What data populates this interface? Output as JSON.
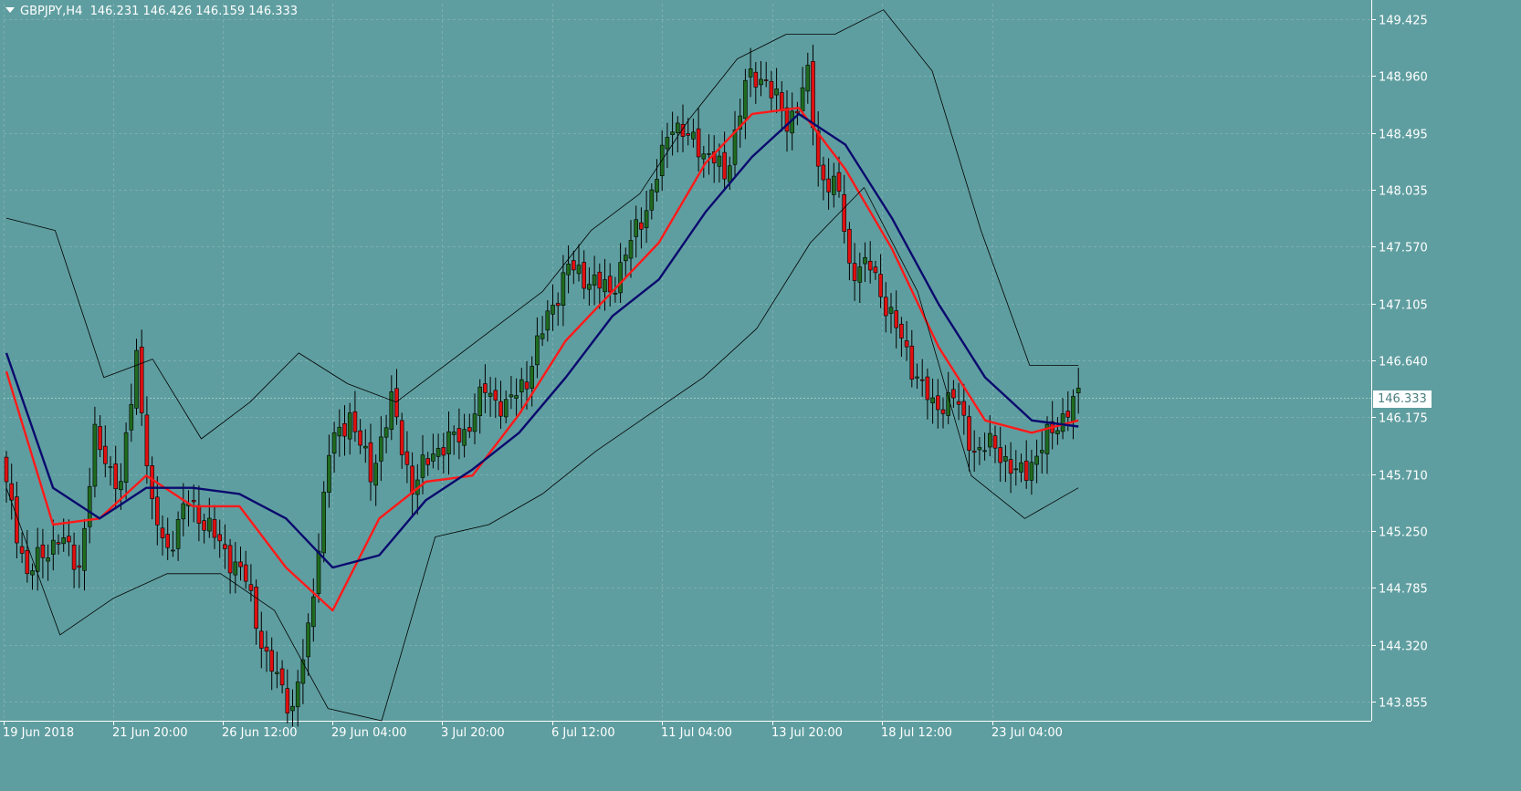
{
  "header": {
    "symbol": "GBPJPY,H4",
    "ohlc": "146.231 146.426 146.159 146.333"
  },
  "current_price_label": "146.333",
  "colors": {
    "background": "#5f9ea0",
    "bull_candle": "#1f6b1f",
    "bear_candle": "#e01010",
    "wick": "#000000",
    "fast_ma": "#ff1a1a",
    "slow_ma": "#0a0a6e",
    "bands": "#000000",
    "grid": "#7aaeb0",
    "axis_text": "#ffffff"
  },
  "chart_data": {
    "type": "candlestick",
    "title": "GBPJPY,H4",
    "ylim": [
      143.7,
      149.55
    ],
    "yticks": [
      "149.425",
      "148.960",
      "148.495",
      "148.035",
      "147.570",
      "147.105",
      "146.640",
      "146.175",
      "145.710",
      "145.250",
      "144.785",
      "144.320",
      "143.855"
    ],
    "xticks": [
      "19 Jun 2018",
      "21 Jun 20:00",
      "26 Jun 12:00",
      "29 Jun 04:00",
      "3 Jul 20:00",
      "6 Jul 12:00",
      "11 Jul 04:00",
      "13 Jul 20:00",
      "18 Jul 12:00",
      "23 Jul 04:00"
    ],
    "grid": true,
    "close_anchors": [
      [
        0,
        145.6
      ],
      [
        4,
        144.9
      ],
      [
        10,
        145.2
      ],
      [
        14,
        144.95
      ],
      [
        17,
        146.0
      ],
      [
        22,
        145.6
      ],
      [
        25,
        146.7
      ],
      [
        28,
        145.4
      ],
      [
        31,
        145.1
      ],
      [
        35,
        145.5
      ],
      [
        40,
        145.2
      ],
      [
        46,
        144.85
      ],
      [
        50,
        144.2
      ],
      [
        55,
        143.8
      ],
      [
        58,
        144.4
      ],
      [
        62,
        145.9
      ],
      [
        66,
        146.2
      ],
      [
        70,
        145.7
      ],
      [
        74,
        146.3
      ],
      [
        78,
        145.6
      ],
      [
        82,
        145.9
      ],
      [
        88,
        146.05
      ],
      [
        92,
        146.4
      ],
      [
        96,
        146.25
      ],
      [
        100,
        146.5
      ],
      [
        104,
        147.0
      ],
      [
        108,
        147.4
      ],
      [
        112,
        147.3
      ],
      [
        116,
        147.2
      ],
      [
        120,
        147.6
      ],
      [
        124,
        148.0
      ],
      [
        128,
        148.6
      ],
      [
        132,
        148.4
      ],
      [
        136,
        148.3
      ],
      [
        138,
        148.1
      ],
      [
        142,
        148.9
      ],
      [
        146,
        148.95
      ],
      [
        150,
        148.55
      ],
      [
        154,
        148.95
      ],
      [
        156,
        148.2
      ],
      [
        160,
        148.0
      ],
      [
        162,
        147.4
      ],
      [
        166,
        147.4
      ],
      [
        170,
        147.0
      ],
      [
        174,
        146.6
      ],
      [
        178,
        146.25
      ],
      [
        182,
        146.35
      ],
      [
        186,
        145.9
      ],
      [
        190,
        145.95
      ],
      [
        194,
        145.7
      ],
      [
        196,
        145.75
      ],
      [
        200,
        146.0
      ],
      [
        204,
        146.25
      ],
      [
        206,
        146.33
      ]
    ],
    "series": [
      {
        "name": "",
        "style": "red moving average",
        "values": [
          146.55,
          145.3,
          145.35,
          145.7,
          145.45,
          145.45,
          144.95,
          144.6,
          145.35,
          145.65,
          145.7,
          146.2,
          146.8,
          147.2,
          147.6,
          148.25,
          148.65,
          148.7,
          148.2,
          147.55,
          146.75,
          146.15,
          146.05,
          146.15
        ]
      },
      {
        "name": "",
        "style": "navy moving average",
        "values": [
          146.7,
          145.6,
          145.35,
          145.6,
          145.6,
          145.55,
          145.35,
          144.95,
          145.05,
          145.5,
          145.75,
          146.05,
          146.5,
          147.0,
          147.3,
          147.85,
          148.3,
          148.65,
          148.4,
          147.8,
          147.1,
          146.5,
          146.15,
          146.1
        ]
      },
      {
        "name": "",
        "style": "upper Bollinger band",
        "values": [
          147.8,
          147.7,
          146.5,
          146.65,
          146.0,
          146.3,
          146.7,
          146.45,
          146.3,
          146.6,
          146.9,
          147.2,
          147.7,
          148.0,
          148.6,
          149.1,
          149.3,
          149.3,
          149.5,
          149.0,
          147.7,
          146.6,
          146.6
        ]
      },
      {
        "name": "",
        "style": "lower Bollinger band",
        "values": [
          145.6,
          144.4,
          144.7,
          144.9,
          144.9,
          144.6,
          143.8,
          143.7,
          145.2,
          145.3,
          145.55,
          145.9,
          146.2,
          146.5,
          146.9,
          147.6,
          148.05,
          147.2,
          145.7,
          145.35,
          145.6
        ]
      }
    ]
  }
}
